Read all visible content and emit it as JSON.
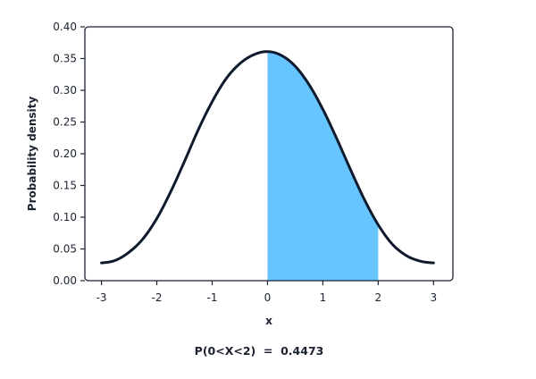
{
  "chart_data": {
    "type": "area",
    "xlabel": "x",
    "ylabel": "Probability density",
    "xlim": [
      -3.3,
      3.35
    ],
    "ylim": [
      0,
      0.4
    ],
    "xticks": [
      -3,
      -2,
      -1,
      0,
      1,
      2,
      3
    ],
    "yticks": [
      0.0,
      0.05,
      0.1,
      0.15,
      0.2,
      0.25,
      0.3,
      0.35,
      0.4
    ],
    "ytick_format": 2,
    "grid": false,
    "series": [
      {
        "x": [
          -3.0,
          -2.75,
          -2.5,
          -2.25,
          -2.0,
          -1.75,
          -1.5,
          -1.25,
          -1.0,
          -0.75,
          -0.5,
          -0.25,
          0.0,
          0.25,
          0.5,
          0.75,
          1.0,
          1.25,
          1.5,
          1.75,
          2.0,
          2.25,
          2.5,
          2.75,
          3.0
        ],
        "y": [
          0.028,
          0.032,
          0.045,
          0.066,
          0.098,
          0.14,
          0.188,
          0.238,
          0.282,
          0.318,
          0.342,
          0.356,
          0.361,
          0.355,
          0.338,
          0.309,
          0.27,
          0.224,
          0.175,
          0.128,
          0.088,
          0.058,
          0.04,
          0.031,
          0.028
        ],
        "color": "#0f1a2c"
      }
    ],
    "shaded_region": {
      "from": 0,
      "to": 2,
      "color": "#66c4ff"
    },
    "annotation": "P(0<X<2)  =  0.4473"
  }
}
